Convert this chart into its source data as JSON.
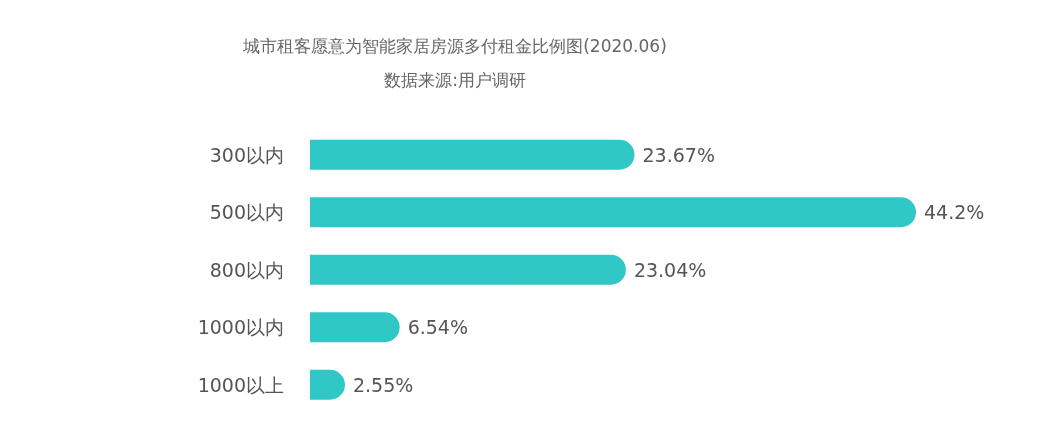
{
  "chart_data": {
    "type": "bar",
    "orientation": "horizontal",
    "title": "城市租客愿意为智能家居房源多付租金比例图(2020.06)",
    "subtitle": "数据来源:用户调研",
    "categories": [
      "300以内",
      "500以内",
      "800以内",
      "1000以内",
      "1000以上"
    ],
    "values": [
      23.67,
      44.2,
      23.04,
      6.54,
      2.55
    ],
    "color": "#30c8c6",
    "value_labels": [
      "23.67%",
      "44.2%",
      "23.04%",
      "6.54%",
      "2.55%"
    ]
  }
}
